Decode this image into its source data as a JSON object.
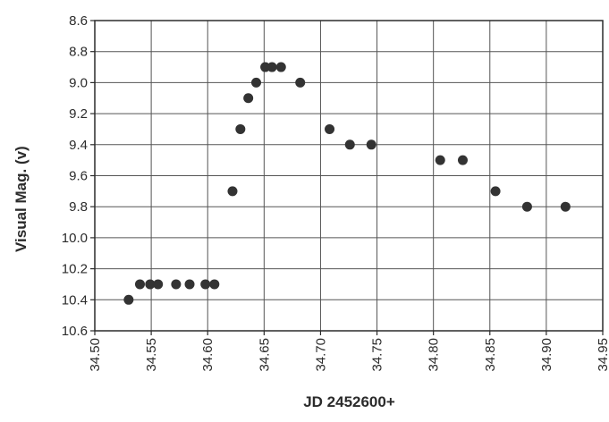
{
  "chart_data": {
    "type": "scatter",
    "title": "",
    "xlabel": "JD 2452600+",
    "ylabel": "Visual Mag. (v)",
    "xlim": [
      34.5,
      34.95
    ],
    "ylim": [
      8.6,
      10.6
    ],
    "y_inverted": true,
    "grid": true,
    "x_ticks": [
      "34.50",
      "34.55",
      "34.60",
      "34.65",
      "34.70",
      "34.75",
      "34.80",
      "34.85",
      "34.90",
      "34.95"
    ],
    "y_ticks": [
      "8.6",
      "8.8",
      "9.0",
      "9.2",
      "9.4",
      "9.6",
      "9.8",
      "10.0",
      "10.2",
      "10.4",
      "10.6"
    ],
    "marker_color": "#333333",
    "series": [
      {
        "points": [
          {
            "x": 34.53,
            "y": 10.4
          },
          {
            "x": 34.54,
            "y": 10.3
          },
          {
            "x": 34.549,
            "y": 10.3
          },
          {
            "x": 34.556,
            "y": 10.3
          },
          {
            "x": 34.572,
            "y": 10.3
          },
          {
            "x": 34.584,
            "y": 10.3
          },
          {
            "x": 34.598,
            "y": 10.3
          },
          {
            "x": 34.606,
            "y": 10.3
          },
          {
            "x": 34.622,
            "y": 9.7
          },
          {
            "x": 34.629,
            "y": 9.3
          },
          {
            "x": 34.636,
            "y": 9.1
          },
          {
            "x": 34.643,
            "y": 9.0
          },
          {
            "x": 34.651,
            "y": 8.9
          },
          {
            "x": 34.657,
            "y": 8.9
          },
          {
            "x": 34.665,
            "y": 8.9
          },
          {
            "x": 34.682,
            "y": 9.0
          },
          {
            "x": 34.708,
            "y": 9.3
          },
          {
            "x": 34.726,
            "y": 9.4
          },
          {
            "x": 34.745,
            "y": 9.4
          },
          {
            "x": 34.806,
            "y": 9.5
          },
          {
            "x": 34.826,
            "y": 9.5
          },
          {
            "x": 34.855,
            "y": 9.7
          },
          {
            "x": 34.883,
            "y": 9.8
          },
          {
            "x": 34.917,
            "y": 9.8
          }
        ]
      }
    ]
  }
}
